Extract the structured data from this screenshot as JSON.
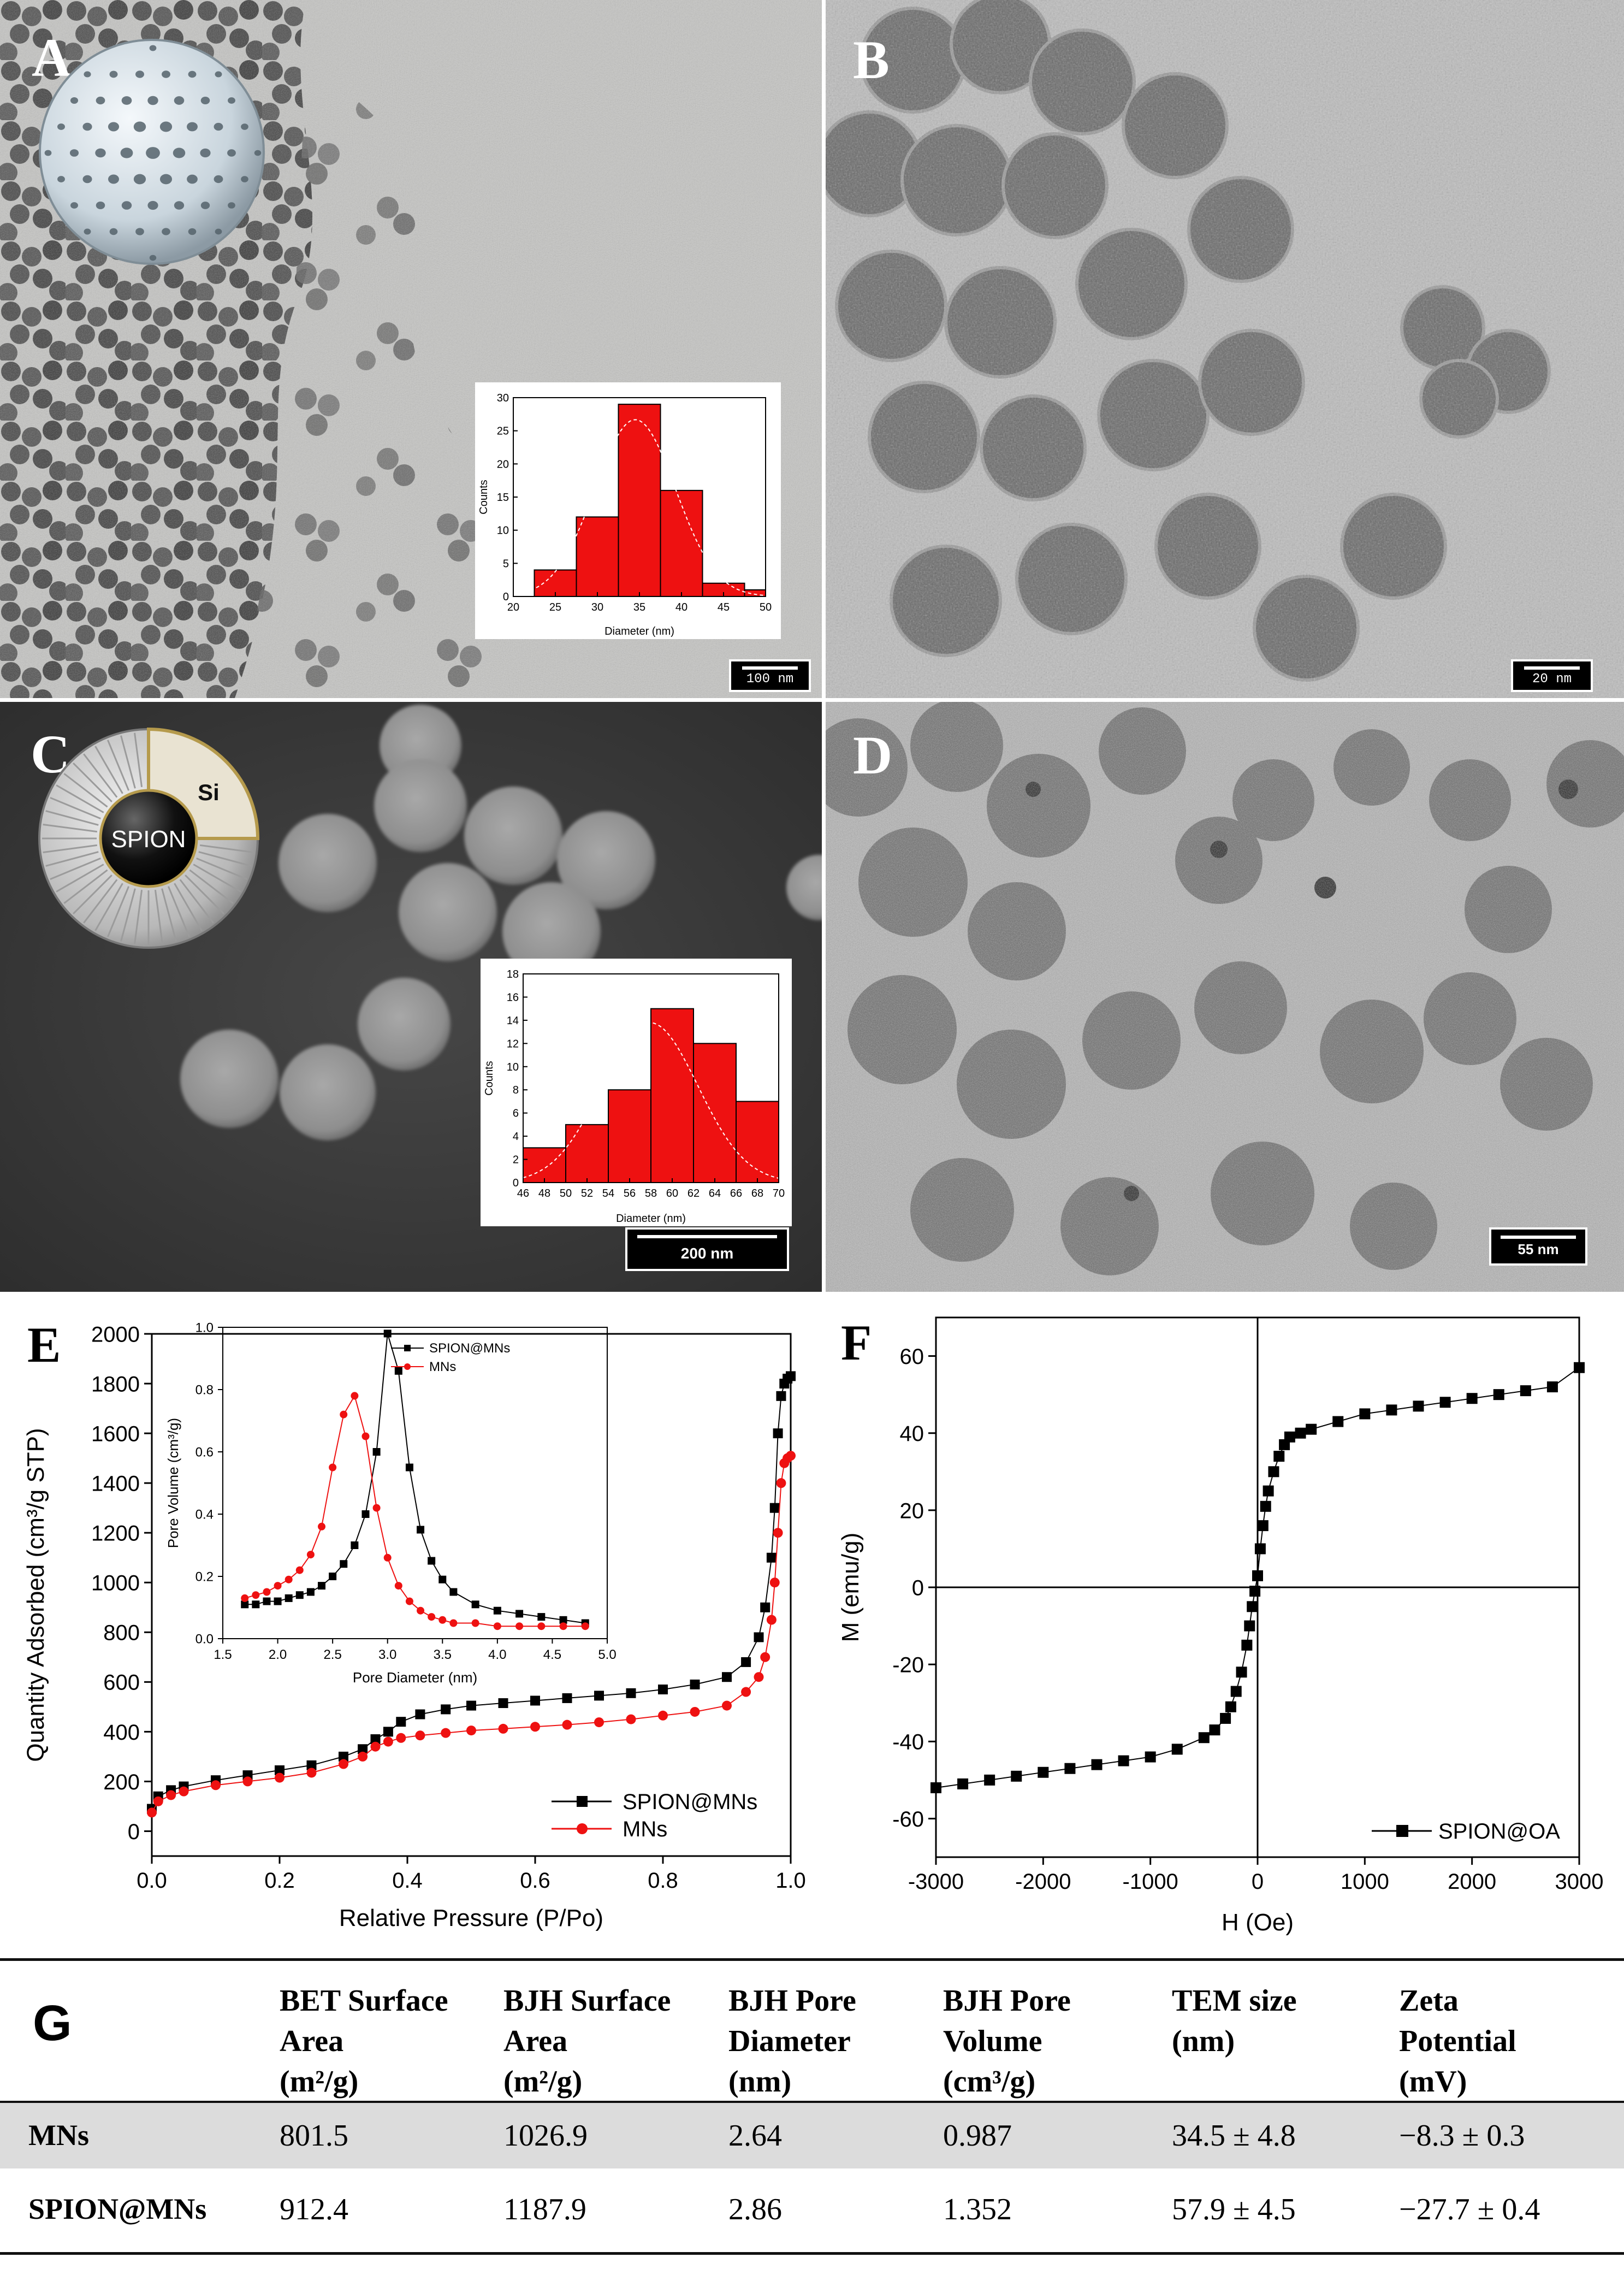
{
  "panels": {
    "a": {
      "label": "A",
      "scale_bar": "100 nm",
      "histogram": {
        "type": "bar",
        "xlabel": "Diameter (nm)",
        "ylabel": "Counts",
        "xlim": [
          20,
          50
        ],
        "ylim": [
          0,
          30
        ],
        "x_ticks": [
          "20",
          "25",
          "30",
          "35",
          "40",
          "45",
          "50"
        ],
        "y_ticks": [
          "0",
          "5",
          "10",
          "15",
          "20",
          "25",
          "30"
        ],
        "bins": [
          [
            22.5,
            27.5,
            4
          ],
          [
            27.5,
            32.5,
            12
          ],
          [
            32.5,
            37.5,
            29
          ],
          [
            37.5,
            42.5,
            16
          ],
          [
            42.5,
            47.5,
            2
          ],
          [
            47.5,
            50,
            1
          ]
        ],
        "fit_mean": 34.5,
        "fit_sd": 4.8,
        "bar_color": "#ee1111"
      }
    },
    "b": {
      "label": "B",
      "scale_bar": "20 nm"
    },
    "c": {
      "label": "C",
      "scale_bar": "200 nm",
      "schematic": {
        "core_label": "SPION",
        "shell_label": "Si"
      },
      "histogram": {
        "type": "bar",
        "xlabel": "Diameter (nm)",
        "ylabel": "Counts",
        "xlim": [
          46,
          70
        ],
        "ylim": [
          0,
          18
        ],
        "x_ticks": [
          "46",
          "48",
          "50",
          "52",
          "54",
          "56",
          "58",
          "60",
          "62",
          "64",
          "66",
          "68",
          "70"
        ],
        "y_ticks": [
          "0",
          "2",
          "4",
          "6",
          "8",
          "10",
          "12",
          "14",
          "16",
          "18"
        ],
        "bins": [
          [
            46,
            50,
            3
          ],
          [
            50,
            54,
            5
          ],
          [
            54,
            58,
            8
          ],
          [
            58,
            62,
            15
          ],
          [
            62,
            66,
            12
          ],
          [
            66,
            70,
            7
          ]
        ],
        "fit_mean": 57.9,
        "fit_sd": 4.5,
        "bar_color": "#ee1111"
      }
    },
    "d": {
      "label": "D",
      "scale_bar": "55 nm"
    }
  },
  "chart_data": [
    {
      "id": "E-main",
      "label": "E",
      "type": "scatter",
      "xlabel": "Relative Pressure (P/Po)",
      "ylabel": "Quantity Adsorbed (cm³/g STP)",
      "xlim": [
        0.0,
        1.0
      ],
      "ylim": [
        -100,
        2000
      ],
      "x_ticks": [
        "0.0",
        "0.2",
        "0.4",
        "0.6",
        "0.8",
        "1.0"
      ],
      "y_ticks": [
        "0",
        "200",
        "400",
        "600",
        "800",
        "1000",
        "1200",
        "1400",
        "1600",
        "1800",
        "2000"
      ],
      "legend": [
        "SPION@MNs",
        "MNs"
      ],
      "series": [
        {
          "name": "SPION@MNs",
          "color": "#000000",
          "marker": "square",
          "x": [
            0.0,
            0.01,
            0.03,
            0.05,
            0.1,
            0.15,
            0.2,
            0.25,
            0.3,
            0.33,
            0.35,
            0.37,
            0.39,
            0.42,
            0.46,
            0.5,
            0.55,
            0.6,
            0.65,
            0.7,
            0.75,
            0.8,
            0.85,
            0.9,
            0.93,
            0.95,
            0.96,
            0.97,
            0.975,
            0.98,
            0.985,
            0.99,
            0.995,
            1.0
          ],
          "y": [
            90,
            140,
            165,
            180,
            205,
            225,
            245,
            265,
            300,
            330,
            370,
            400,
            440,
            470,
            490,
            505,
            515,
            525,
            535,
            545,
            555,
            570,
            590,
            620,
            680,
            780,
            900,
            1100,
            1300,
            1600,
            1750,
            1800,
            1820,
            1830
          ]
        },
        {
          "name": "MNs",
          "color": "#ee1111",
          "marker": "circle",
          "x": [
            0.0,
            0.01,
            0.03,
            0.05,
            0.1,
            0.15,
            0.2,
            0.25,
            0.3,
            0.33,
            0.35,
            0.37,
            0.39,
            0.42,
            0.46,
            0.5,
            0.55,
            0.6,
            0.65,
            0.7,
            0.75,
            0.8,
            0.85,
            0.9,
            0.93,
            0.95,
            0.96,
            0.97,
            0.975,
            0.98,
            0.985,
            0.99,
            0.995,
            1.0
          ],
          "y": [
            75,
            120,
            145,
            160,
            185,
            200,
            215,
            235,
            270,
            300,
            340,
            360,
            375,
            385,
            395,
            405,
            412,
            420,
            428,
            438,
            450,
            465,
            480,
            505,
            560,
            620,
            700,
            850,
            1000,
            1200,
            1400,
            1480,
            1500,
            1510
          ]
        }
      ]
    },
    {
      "id": "E-inset",
      "type": "line",
      "xlabel": "Pore Diameter (nm)",
      "ylabel": "Pore Volume (cm³/g)",
      "xlim": [
        1.5,
        5.0
      ],
      "ylim": [
        0.0,
        1.0
      ],
      "x_ticks": [
        "1.5",
        "2.0",
        "2.5",
        "3.0",
        "3.5",
        "4.0",
        "4.5",
        "5.0"
      ],
      "y_ticks": [
        "0.0",
        "0.2",
        "0.4",
        "0.6",
        "0.8",
        "1.0"
      ],
      "legend": [
        "SPION@MNs",
        "MNs"
      ],
      "series": [
        {
          "name": "SPION@MNs",
          "color": "#000000",
          "marker": "square",
          "x": [
            1.7,
            1.8,
            1.9,
            2.0,
            2.1,
            2.2,
            2.3,
            2.4,
            2.5,
            2.6,
            2.7,
            2.8,
            2.9,
            3.0,
            3.1,
            3.2,
            3.3,
            3.4,
            3.5,
            3.6,
            3.8,
            4.0,
            4.2,
            4.4,
            4.6,
            4.8
          ],
          "y": [
            0.11,
            0.11,
            0.12,
            0.12,
            0.13,
            0.14,
            0.15,
            0.17,
            0.2,
            0.24,
            0.3,
            0.4,
            0.6,
            0.98,
            0.86,
            0.55,
            0.35,
            0.25,
            0.19,
            0.15,
            0.11,
            0.09,
            0.08,
            0.07,
            0.06,
            0.05
          ]
        },
        {
          "name": "MNs",
          "color": "#ee1111",
          "marker": "circle",
          "x": [
            1.7,
            1.8,
            1.9,
            2.0,
            2.1,
            2.2,
            2.3,
            2.4,
            2.5,
            2.6,
            2.7,
            2.8,
            2.9,
            3.0,
            3.1,
            3.2,
            3.3,
            3.4,
            3.5,
            3.6,
            3.8,
            4.0,
            4.2,
            4.4,
            4.6,
            4.8
          ],
          "y": [
            0.13,
            0.14,
            0.15,
            0.17,
            0.19,
            0.22,
            0.27,
            0.36,
            0.55,
            0.72,
            0.78,
            0.65,
            0.42,
            0.26,
            0.17,
            0.12,
            0.09,
            0.07,
            0.06,
            0.05,
            0.05,
            0.04,
            0.04,
            0.04,
            0.04,
            0.04
          ]
        }
      ]
    },
    {
      "id": "F",
      "label": "F",
      "type": "scatter",
      "xlabel": "H (Oe)",
      "ylabel": "M (emu/g)",
      "xlim": [
        -3000,
        3000
      ],
      "ylim": [
        -70,
        70
      ],
      "x_ticks": [
        "-3000",
        "-2000",
        "-1000",
        "0",
        "1000",
        "2000",
        "3000"
      ],
      "y_ticks": [
        "-60",
        "-40",
        "-20",
        "0",
        "20",
        "40",
        "60"
      ],
      "legend": [
        "SPION@OA"
      ],
      "series": [
        {
          "name": "SPION@OA",
          "color": "#000000",
          "marker": "square",
          "x": [
            -3000,
            -2750,
            -2500,
            -2250,
            -2000,
            -1750,
            -1500,
            -1250,
            -1000,
            -750,
            -500,
            -400,
            -300,
            -250,
            -200,
            -150,
            -100,
            -75,
            -50,
            -25,
            0,
            25,
            50,
            75,
            100,
            150,
            200,
            250,
            300,
            400,
            500,
            750,
            1000,
            1250,
            1500,
            1750,
            2000,
            2250,
            2500,
            2750,
            3000
          ],
          "y": [
            -52,
            -51,
            -50,
            -49,
            -48,
            -47,
            -46,
            -45,
            -44,
            -42,
            -39,
            -37,
            -34,
            -31,
            -27,
            -22,
            -15,
            -10,
            -5,
            -1,
            3,
            10,
            16,
            21,
            25,
            30,
            34,
            37,
            39,
            40,
            41,
            43,
            45,
            46,
            47,
            48,
            49,
            50,
            51,
            52,
            57
          ]
        }
      ]
    }
  ],
  "table": {
    "label": "G",
    "headers": [
      [
        "BET Surface",
        "Area",
        "(m²/g)"
      ],
      [
        "BJH Surface",
        "Area",
        "(m²/g)"
      ],
      [
        "BJH Pore",
        "Diameter",
        "(nm)"
      ],
      [
        "BJH Pore",
        "Volume",
        "(cm³/g)"
      ],
      [
        "TEM size",
        "(nm)"
      ],
      [
        "Zeta",
        "Potential",
        "(mV)"
      ]
    ],
    "rows": [
      {
        "name": "MNs",
        "cells": [
          "801.5",
          "1026.9",
          "2.64",
          "0.987",
          "34.5 ± 4.8",
          "−8.3 ± 0.3"
        ]
      },
      {
        "name": "SPION@MNs",
        "cells": [
          "912.4",
          "1187.9",
          "2.86",
          "1.352",
          "57.9 ± 4.5",
          "−27.7 ± 0.4"
        ]
      }
    ]
  }
}
